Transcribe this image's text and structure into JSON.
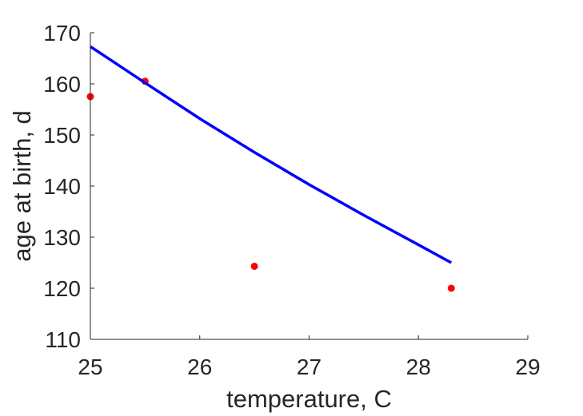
{
  "chart_data": {
    "type": "scatter",
    "xlabel": "temperature, C",
    "ylabel": "age at birth, d",
    "xlim": [
      25,
      29
    ],
    "ylim": [
      110,
      170
    ],
    "xticks": [
      "25",
      "26",
      "27",
      "28",
      "29"
    ],
    "yticks": [
      "110",
      "120",
      "130",
      "140",
      "150",
      "160",
      "170"
    ],
    "grid": false,
    "series": [
      {
        "kind": "points",
        "color": "#ff0000",
        "x": [
          25.0,
          25.5,
          26.5,
          28.3
        ],
        "y": [
          157.5,
          160.5,
          124.3,
          120.0
        ]
      },
      {
        "kind": "line",
        "color": "#0000ff",
        "x": [
          25.0,
          25.5,
          26.0,
          26.5,
          27.0,
          27.5,
          28.0,
          28.3
        ],
        "y": [
          167.3,
          160.2,
          153.2,
          146.6,
          140.3,
          134.3,
          128.5,
          125.0
        ]
      }
    ]
  }
}
